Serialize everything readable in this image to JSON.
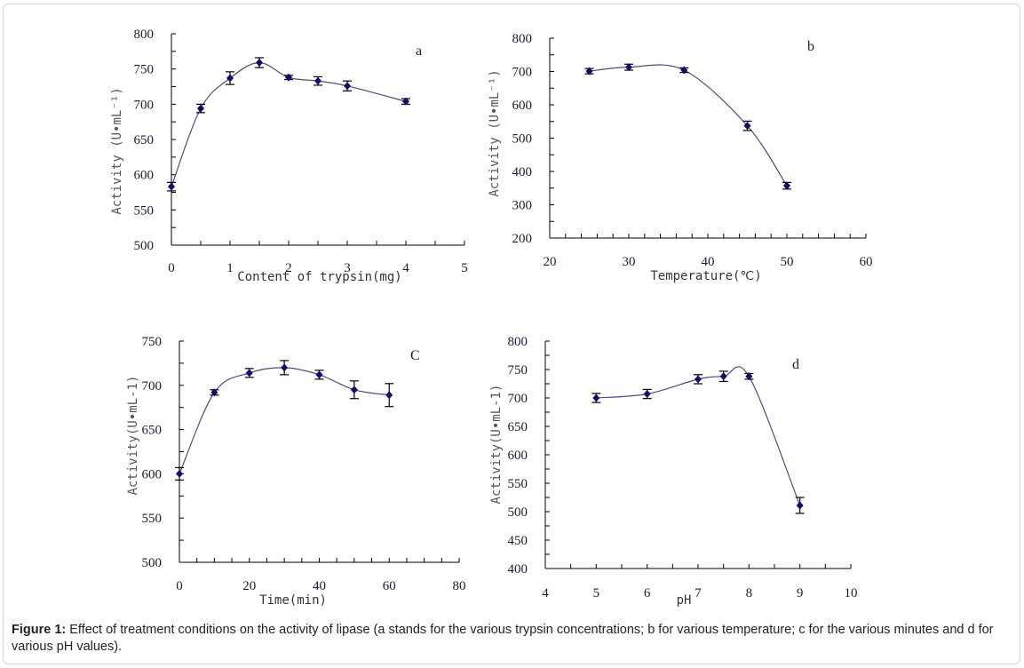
{
  "figure": {
    "caption_label": "Figure 1:",
    "caption_text": " Effect of treatment conditions on the activity of lipase (a stands for the various trypsin concentrations; b for various temperature; c for the various minutes and d for various pH values)."
  },
  "colors": {
    "line": "#4a4a8a",
    "marker": "#0d0d6b",
    "errorbar": "#000000",
    "axis": "#000000"
  },
  "chart_data": [
    {
      "id": "a",
      "type": "line",
      "panel_label": "a",
      "title": "",
      "xlabel": "Content of trypsin(mg)",
      "ylabel": "Activity (U•mL⁻¹)",
      "xlim": [
        0,
        5
      ],
      "ylim": [
        500,
        800
      ],
      "xticks": [
        0,
        1,
        2,
        3,
        4,
        5
      ],
      "yticks": [
        500,
        550,
        600,
        650,
        700,
        750,
        800
      ],
      "x": [
        0,
        0.5,
        1,
        1.5,
        2,
        2.5,
        3,
        4
      ],
      "y": [
        583,
        694,
        737,
        759,
        738,
        733,
        726,
        704
      ],
      "error": [
        6,
        6,
        9,
        7,
        3,
        6,
        7,
        4
      ],
      "grid": false,
      "smooth": true
    },
    {
      "id": "b",
      "type": "line",
      "panel_label": "b",
      "title": "",
      "xlabel": "Temperature(℃)",
      "ylabel": "Activity (U•mL⁻¹)",
      "xlim": [
        20,
        60
      ],
      "ylim": [
        200,
        800
      ],
      "xticks": [
        20,
        30,
        40,
        50,
        60
      ],
      "yticks": [
        200,
        300,
        400,
        500,
        600,
        700,
        800
      ],
      "x": [
        25,
        30,
        37,
        45,
        50
      ],
      "y": [
        701,
        713,
        704,
        537,
        357
      ],
      "error": [
        8,
        9,
        7,
        14,
        10
      ],
      "grid": false,
      "smooth": true
    },
    {
      "id": "c",
      "type": "line",
      "panel_label": "C",
      "title": "",
      "xlabel": "Time(min)",
      "ylabel": "Activity(U•mL-1)",
      "xlim": [
        0,
        80
      ],
      "ylim": [
        500,
        750
      ],
      "xticks": [
        0,
        20,
        40,
        60,
        80
      ],
      "yticks": [
        500,
        550,
        600,
        650,
        700,
        750
      ],
      "x": [
        0,
        10,
        20,
        30,
        40,
        50,
        60
      ],
      "y": [
        600,
        692,
        714,
        720,
        712,
        695,
        689
      ],
      "error": [
        7,
        3,
        5,
        8,
        5,
        10,
        13
      ],
      "grid": false,
      "smooth": true
    },
    {
      "id": "d",
      "type": "line",
      "panel_label": "d",
      "title": "",
      "xlabel": "pH",
      "ylabel": "Activity(U•mL-1)",
      "xlim": [
        4,
        10
      ],
      "ylim": [
        400,
        800
      ],
      "xticks": [
        4,
        5,
        6,
        7,
        8,
        9,
        10
      ],
      "yticks": [
        400,
        450,
        500,
        550,
        600,
        650,
        700,
        750,
        800
      ],
      "x": [
        5,
        6,
        7,
        7.5,
        8,
        9
      ],
      "y": [
        700,
        707,
        733,
        738,
        738,
        511
      ],
      "error": [
        8,
        8,
        8,
        9,
        5,
        14
      ],
      "grid": false,
      "smooth": true
    }
  ]
}
